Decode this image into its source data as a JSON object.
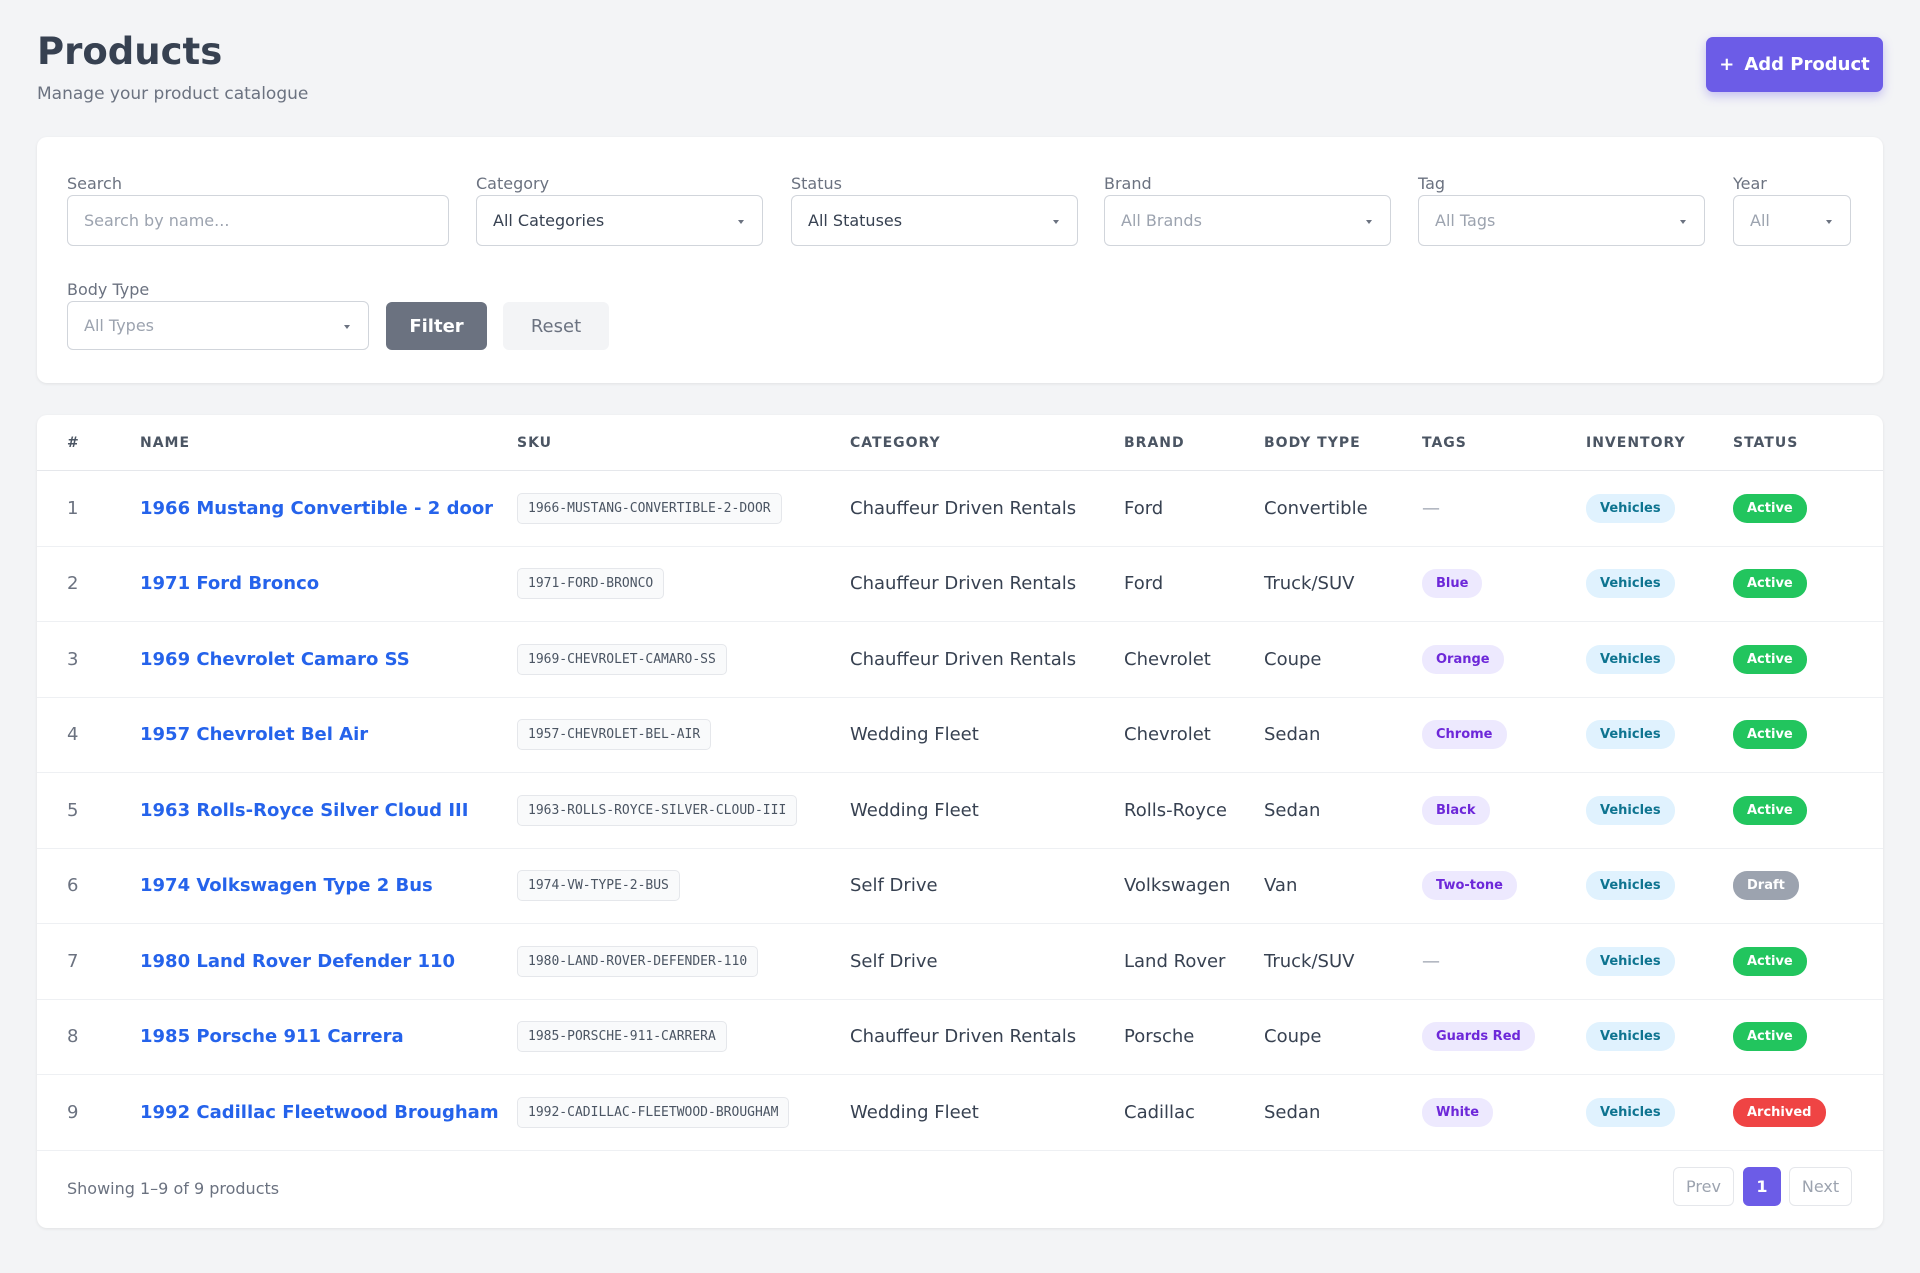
{
  "header": {
    "title": "Products",
    "subtitle": "Manage your product catalogue",
    "add_button_icon": "+",
    "add_button": "Add Product"
  },
  "filters": [
    {
      "label": "Search",
      "placeholder": "Search by name..."
    },
    {
      "label": "Category",
      "value": "All Categories"
    },
    {
      "label": "Status",
      "value": "All Statuses"
    },
    {
      "label": "Brand",
      "placeholder": "All Brands"
    },
    {
      "label": "Tag",
      "placeholder": "All Tags"
    },
    {
      "label": "Year",
      "placeholder": "All"
    },
    {
      "label": "Body Type",
      "placeholder": "All Types"
    }
  ],
  "filter_button": "Filter",
  "reset_button": "Reset",
  "table": {
    "columns": [
      "#",
      "NAME",
      "SKU",
      "CATEGORY",
      "BRAND",
      "BODY TYPE",
      "TAGS",
      "INVENTORY",
      "STATUS"
    ],
    "rows": [
      {
        "id": 1,
        "name": "1966 Mustang Convertible - 2 door",
        "sku": "1966-MUSTANG-CONVERTIBLE-2-DOOR",
        "category": "Chauffeur Driven Rentals",
        "brand": "Ford",
        "body_type": "Convertible",
        "tags": "—",
        "inventory": "Vehicles",
        "status": "Active",
        "status_color": "#22c55e"
      },
      {
        "id": 2,
        "name": "1971 Ford Bronco",
        "sku": "1971-FORD-BRONCO",
        "category": "Chauffeur Driven Rentals",
        "brand": "Ford",
        "body_type": "Truck/SUV",
        "tags": [
          "Blue"
        ],
        "inventory": "Vehicles",
        "status": "Active",
        "status_color": "#22c55e"
      },
      {
        "id": 3,
        "name": "1969 Chevrolet Camaro SS",
        "sku": "1969-CHEVROLET-CAMARO-SS",
        "category": "Chauffeur Driven Rentals",
        "brand": "Chevrolet",
        "body_type": "Coupe",
        "tags": [
          "Orange"
        ],
        "inventory": "Vehicles",
        "status": "Active",
        "status_color": "#22c55e"
      },
      {
        "id": 4,
        "name": "1957 Chevrolet Bel Air",
        "sku": "1957-CHEVROLET-BEL-AIR",
        "category": "Wedding Fleet",
        "brand": "Chevrolet",
        "body_type": "Sedan",
        "tags": [
          "Chrome"
        ],
        "inventory": "Vehicles",
        "status": "Active",
        "status_color": "#22c55e"
      },
      {
        "id": 5,
        "name": "1963 Rolls-Royce Silver Cloud III",
        "sku": "1963-ROLLS-ROYCE-SILVER-CLOUD-III",
        "category": "Wedding Fleet",
        "brand": "Rolls-Royce",
        "body_type": "Sedan",
        "tags": [
          "Black"
        ],
        "inventory": "Vehicles",
        "status": "Active",
        "status_color": "#22c55e"
      },
      {
        "id": 6,
        "name": "1974 Volkswagen Type 2 Bus",
        "sku": "1974-VW-TYPE-2-BUS",
        "category": "Self Drive",
        "brand": "Volkswagen",
        "body_type": "Van",
        "tags": [
          "Two-tone"
        ],
        "inventory": "Vehicles",
        "status": "Draft",
        "status_color": "#9ca3af"
      },
      {
        "id": 7,
        "name": "1980 Land Rover Defender 110",
        "sku": "1980-LAND-ROVER-DEFENDER-110",
        "category": "Self Drive",
        "brand": "Land Rover",
        "body_type": "Truck/SUV",
        "tags": "—",
        "inventory": "Vehicles",
        "status": "Active",
        "status_color": "#22c55e"
      },
      {
        "id": 8,
        "name": "1985 Porsche 911 Carrera",
        "sku": "1985-PORSCHE-911-CARRERA",
        "category": "Chauffeur Driven Rentals",
        "brand": "Porsche",
        "body_type": "Coupe",
        "tags": [
          "Guards Red"
        ],
        "inventory": "Vehicles",
        "status": "Active",
        "status_color": "#22c55e"
      },
      {
        "id": 9,
        "name": "1992 Cadillac Fleetwood Brougham",
        "sku": "1992-CADILLAC-FLEETWOOD-BROUGHAM",
        "category": "Wedding Fleet",
        "brand": "Cadillac",
        "body_type": "Sedan",
        "tags": [
          "White"
        ],
        "inventory": "Vehicles",
        "status": "Archived",
        "status_color": "#ef4444"
      }
    ]
  },
  "footer": {
    "summary": "Showing 1–9 of 9 products",
    "prev": "Prev",
    "page": 1,
    "next": "Next"
  }
}
